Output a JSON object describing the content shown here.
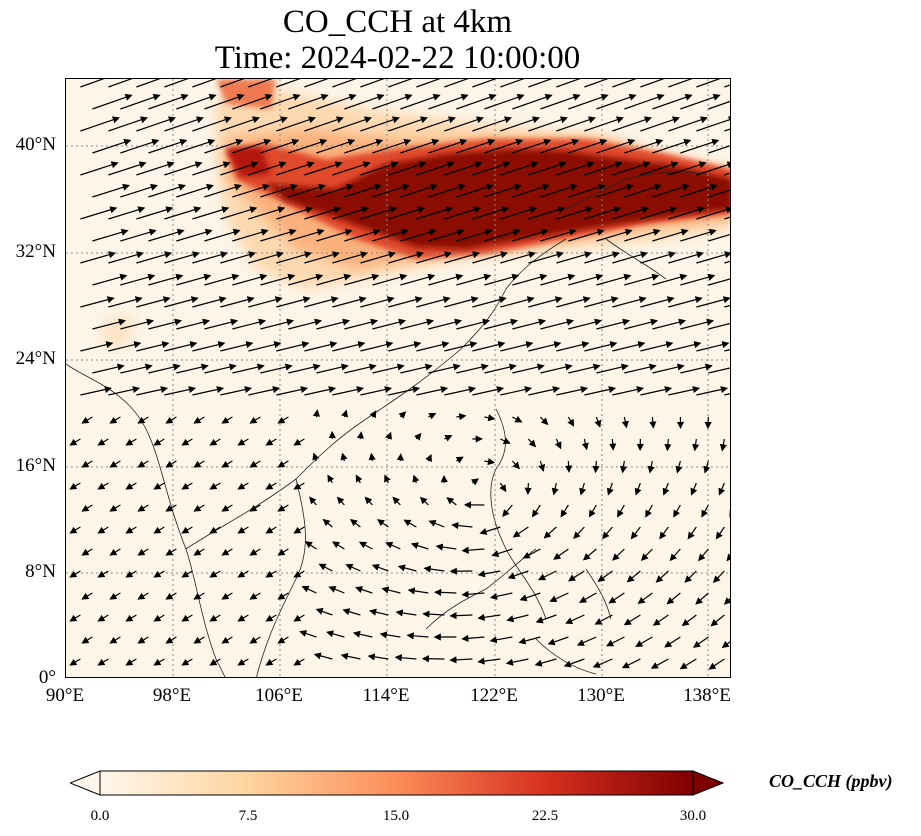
{
  "title_line1": "CO_CCH at 4km",
  "title_line2": "Time: 2024-02-22 10:00:00",
  "lat_labels": [
    "40°N",
    "32°N",
    "24°N",
    "16°N",
    "8°N",
    "0°"
  ],
  "lon_labels": [
    "90°E",
    "98°E",
    "106°E",
    "114°E",
    "122°E",
    "130°E",
    "138°E"
  ],
  "colorbar": {
    "ticks": [
      "0.0",
      "7.5",
      "15.0",
      "22.5",
      "30.0"
    ],
    "label": "CO_CCH (ppbv)",
    "colormap": "OrRd",
    "min": 0,
    "max": 30,
    "extend": "both",
    "colors": [
      "#fff7ec",
      "#fdd49e",
      "#fc8d59",
      "#d7301f",
      "#7f0000"
    ]
  },
  "map": {
    "extent": {
      "lon": [
        90,
        139.7
      ],
      "lat": [
        0,
        45
      ]
    },
    "gridlines": "dotted",
    "overlay": "wind vectors",
    "features": [
      "coastlines",
      "country borders"
    ]
  }
}
